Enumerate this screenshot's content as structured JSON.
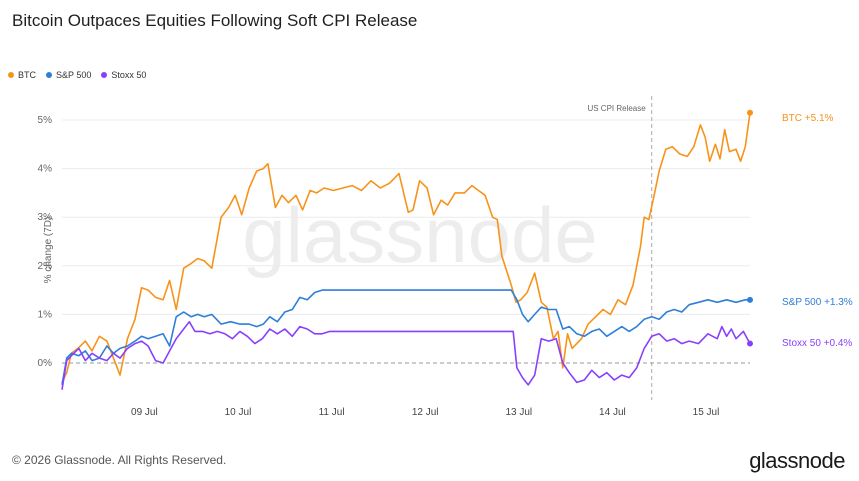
{
  "title": "Bitcoin Outpaces Equities Following Soft CPI Release",
  "footer": "© 2026 Glassnode. All Rights Reserved.",
  "brand": "glassnode",
  "watermark": "glassnode",
  "chart_data": {
    "type": "line",
    "ylabel": "% change (7D)",
    "yticks": [
      "0%",
      "1%",
      "2%",
      "3%",
      "4%",
      "5%"
    ],
    "ylim": [
      -0.8,
      5.5
    ],
    "xlim": [
      0,
      7.05
    ],
    "xticks": [
      {
        "x": 1.0,
        "label": "09 Jul"
      },
      {
        "x": 2.0,
        "label": "10 Jul"
      },
      {
        "x": 3.0,
        "label": "11 Jul"
      },
      {
        "x": 4.0,
        "label": "12 Jul"
      },
      {
        "x": 5.0,
        "label": "13 Jul"
      },
      {
        "x": 6.0,
        "label": "14 Jul"
      },
      {
        "x": 7.0,
        "label": "15 Jul"
      }
    ],
    "grid": "horizontal",
    "legend_position": "top-left",
    "zero_line": "dashed",
    "annotation": {
      "x": 6.3,
      "label": "US CPI Release"
    },
    "series": [
      {
        "name": "BTC",
        "color": "#f7931a",
        "end_label": "BTC +5.1%",
        "points": [
          [
            0.0,
            -0.4
          ],
          [
            0.05,
            -0.2
          ],
          [
            0.1,
            0.2
          ],
          [
            0.17,
            0.3
          ],
          [
            0.25,
            0.45
          ],
          [
            0.32,
            0.25
          ],
          [
            0.4,
            0.55
          ],
          [
            0.48,
            0.45
          ],
          [
            0.55,
            0.1
          ],
          [
            0.62,
            -0.25
          ],
          [
            0.7,
            0.5
          ],
          [
            0.78,
            0.9
          ],
          [
            0.85,
            1.55
          ],
          [
            0.92,
            1.5
          ],
          [
            1.0,
            1.35
          ],
          [
            1.08,
            1.3
          ],
          [
            1.15,
            1.7
          ],
          [
            1.22,
            1.1
          ],
          [
            1.3,
            1.95
          ],
          [
            1.38,
            2.05
          ],
          [
            1.45,
            2.15
          ],
          [
            1.52,
            2.1
          ],
          [
            1.6,
            1.95
          ],
          [
            1.7,
            3.0
          ],
          [
            1.78,
            3.2
          ],
          [
            1.85,
            3.45
          ],
          [
            1.92,
            3.05
          ],
          [
            2.0,
            3.6
          ],
          [
            2.08,
            3.95
          ],
          [
            2.15,
            4.0
          ],
          [
            2.2,
            4.1
          ],
          [
            2.28,
            3.2
          ],
          [
            2.35,
            3.45
          ],
          [
            2.42,
            3.3
          ],
          [
            2.5,
            3.45
          ],
          [
            2.57,
            3.15
          ],
          [
            2.65,
            3.55
          ],
          [
            2.72,
            3.5
          ],
          [
            2.8,
            3.6
          ],
          [
            2.9,
            3.55
          ],
          [
            3.0,
            3.6
          ],
          [
            3.1,
            3.65
          ],
          [
            3.2,
            3.55
          ],
          [
            3.3,
            3.75
          ],
          [
            3.4,
            3.6
          ],
          [
            3.5,
            3.7
          ],
          [
            3.6,
            3.9
          ],
          [
            3.7,
            3.1
          ],
          [
            3.75,
            3.15
          ],
          [
            3.82,
            3.75
          ],
          [
            3.9,
            3.6
          ],
          [
            3.97,
            3.05
          ],
          [
            4.05,
            3.35
          ],
          [
            4.12,
            3.25
          ],
          [
            4.2,
            3.5
          ],
          [
            4.3,
            3.5
          ],
          [
            4.38,
            3.65
          ],
          [
            4.45,
            3.55
          ],
          [
            4.52,
            3.45
          ],
          [
            4.6,
            3.0
          ],
          [
            4.65,
            2.95
          ],
          [
            4.7,
            2.2
          ],
          [
            4.75,
            1.9
          ],
          [
            4.8,
            1.6
          ],
          [
            4.85,
            1.25
          ],
          [
            4.9,
            1.3
          ],
          [
            4.97,
            1.45
          ],
          [
            5.05,
            1.85
          ],
          [
            5.12,
            1.25
          ],
          [
            5.18,
            1.15
          ],
          [
            5.25,
            0.5
          ],
          [
            5.3,
            0.65
          ],
          [
            5.35,
            -0.1
          ],
          [
            5.4,
            0.6
          ],
          [
            5.45,
            0.3
          ],
          [
            5.55,
            0.5
          ],
          [
            5.62,
            0.8
          ],
          [
            5.7,
            0.95
          ],
          [
            5.78,
            1.1
          ],
          [
            5.86,
            1.0
          ],
          [
            5.94,
            1.3
          ],
          [
            6.02,
            1.2
          ],
          [
            6.1,
            1.6
          ],
          [
            6.18,
            2.4
          ],
          [
            6.22,
            3.0
          ],
          [
            6.27,
            2.95
          ],
          [
            6.32,
            3.4
          ],
          [
            6.38,
            3.95
          ],
          [
            6.45,
            4.4
          ],
          [
            6.52,
            4.45
          ],
          [
            6.6,
            4.3
          ],
          [
            6.68,
            4.25
          ],
          [
            6.75,
            4.45
          ],
          [
            6.82,
            4.9
          ],
          [
            6.87,
            4.65
          ],
          [
            6.92,
            4.15
          ],
          [
            6.98,
            4.5
          ],
          [
            7.03,
            4.2
          ],
          [
            7.08,
            4.8
          ],
          [
            7.13,
            4.35
          ],
          [
            7.2,
            4.4
          ],
          [
            7.25,
            4.15
          ],
          [
            7.3,
            4.45
          ],
          [
            7.35,
            5.15
          ]
        ]
      },
      {
        "name": "S&P 500",
        "color": "#2f7ed8",
        "end_label": "S&P 500 +1.3%",
        "points": [
          [
            0.0,
            -0.45
          ],
          [
            0.05,
            0.1
          ],
          [
            0.1,
            0.2
          ],
          [
            0.18,
            0.15
          ],
          [
            0.25,
            0.25
          ],
          [
            0.32,
            0.05
          ],
          [
            0.4,
            0.1
          ],
          [
            0.48,
            0.35
          ],
          [
            0.55,
            0.2
          ],
          [
            0.62,
            0.3
          ],
          [
            0.7,
            0.35
          ],
          [
            0.78,
            0.45
          ],
          [
            0.85,
            0.55
          ],
          [
            0.92,
            0.5
          ],
          [
            1.0,
            0.55
          ],
          [
            1.08,
            0.6
          ],
          [
            1.15,
            0.35
          ],
          [
            1.22,
            0.95
          ],
          [
            1.3,
            1.05
          ],
          [
            1.38,
            0.95
          ],
          [
            1.45,
            1.0
          ],
          [
            1.52,
            0.95
          ],
          [
            1.6,
            1.0
          ],
          [
            1.7,
            0.8
          ],
          [
            1.8,
            0.85
          ],
          [
            1.9,
            0.8
          ],
          [
            2.0,
            0.8
          ],
          [
            2.08,
            0.75
          ],
          [
            2.15,
            0.8
          ],
          [
            2.22,
            0.95
          ],
          [
            2.3,
            0.85
          ],
          [
            2.38,
            1.05
          ],
          [
            2.46,
            1.1
          ],
          [
            2.54,
            1.35
          ],
          [
            2.62,
            1.3
          ],
          [
            2.7,
            1.45
          ],
          [
            2.78,
            1.5
          ],
          [
            3.5,
            1.5
          ],
          [
            4.2,
            1.5
          ],
          [
            4.8,
            1.5
          ],
          [
            4.86,
            1.3
          ],
          [
            4.92,
            1.0
          ],
          [
            4.98,
            0.85
          ],
          [
            5.05,
            1.0
          ],
          [
            5.12,
            1.15
          ],
          [
            5.2,
            1.1
          ],
          [
            5.28,
            1.1
          ],
          [
            5.35,
            0.7
          ],
          [
            5.42,
            0.75
          ],
          [
            5.5,
            0.6
          ],
          [
            5.58,
            0.55
          ],
          [
            5.66,
            0.65
          ],
          [
            5.74,
            0.7
          ],
          [
            5.82,
            0.55
          ],
          [
            5.9,
            0.65
          ],
          [
            5.98,
            0.75
          ],
          [
            6.06,
            0.65
          ],
          [
            6.14,
            0.75
          ],
          [
            6.22,
            0.9
          ],
          [
            6.3,
            0.95
          ],
          [
            6.38,
            0.9
          ],
          [
            6.46,
            1.05
          ],
          [
            6.54,
            1.1
          ],
          [
            6.62,
            1.05
          ],
          [
            6.7,
            1.2
          ],
          [
            6.8,
            1.25
          ],
          [
            6.9,
            1.3
          ],
          [
            7.0,
            1.25
          ],
          [
            7.1,
            1.3
          ],
          [
            7.2,
            1.25
          ],
          [
            7.3,
            1.3
          ],
          [
            7.35,
            1.3
          ]
        ]
      },
      {
        "name": "Stoxx 50",
        "color": "#8a3ffc",
        "end_label": "Stoxx 50 +0.4%",
        "points": [
          [
            0.0,
            -0.55
          ],
          [
            0.05,
            0.05
          ],
          [
            0.1,
            0.15
          ],
          [
            0.18,
            0.3
          ],
          [
            0.25,
            0.05
          ],
          [
            0.32,
            0.2
          ],
          [
            0.4,
            0.1
          ],
          [
            0.48,
            0.05
          ],
          [
            0.55,
            0.2
          ],
          [
            0.62,
            0.1
          ],
          [
            0.7,
            0.3
          ],
          [
            0.78,
            0.4
          ],
          [
            0.85,
            0.45
          ],
          [
            0.92,
            0.35
          ],
          [
            1.0,
            0.05
          ],
          [
            1.08,
            0.0
          ],
          [
            1.15,
            0.25
          ],
          [
            1.22,
            0.5
          ],
          [
            1.3,
            0.7
          ],
          [
            1.36,
            0.85
          ],
          [
            1.42,
            0.65
          ],
          [
            1.5,
            0.65
          ],
          [
            1.58,
            0.6
          ],
          [
            1.66,
            0.65
          ],
          [
            1.74,
            0.6
          ],
          [
            1.82,
            0.5
          ],
          [
            1.9,
            0.65
          ],
          [
            1.98,
            0.55
          ],
          [
            2.06,
            0.4
          ],
          [
            2.14,
            0.5
          ],
          [
            2.22,
            0.7
          ],
          [
            2.3,
            0.6
          ],
          [
            2.38,
            0.7
          ],
          [
            2.46,
            0.55
          ],
          [
            2.54,
            0.75
          ],
          [
            2.62,
            0.7
          ],
          [
            2.7,
            0.6
          ],
          [
            2.78,
            0.6
          ],
          [
            2.86,
            0.65
          ],
          [
            3.5,
            0.65
          ],
          [
            4.2,
            0.65
          ],
          [
            4.82,
            0.65
          ],
          [
            4.86,
            -0.1
          ],
          [
            4.92,
            -0.3
          ],
          [
            4.98,
            -0.45
          ],
          [
            5.05,
            -0.25
          ],
          [
            5.12,
            0.5
          ],
          [
            5.2,
            0.45
          ],
          [
            5.28,
            0.5
          ],
          [
            5.35,
            0.0
          ],
          [
            5.42,
            -0.2
          ],
          [
            5.5,
            -0.4
          ],
          [
            5.58,
            -0.35
          ],
          [
            5.66,
            -0.15
          ],
          [
            5.74,
            -0.3
          ],
          [
            5.82,
            -0.2
          ],
          [
            5.9,
            -0.35
          ],
          [
            5.98,
            -0.25
          ],
          [
            6.06,
            -0.3
          ],
          [
            6.14,
            -0.1
          ],
          [
            6.22,
            0.3
          ],
          [
            6.3,
            0.55
          ],
          [
            6.38,
            0.6
          ],
          [
            6.46,
            0.45
          ],
          [
            6.54,
            0.5
          ],
          [
            6.62,
            0.4
          ],
          [
            6.7,
            0.45
          ],
          [
            6.8,
            0.4
          ],
          [
            6.9,
            0.6
          ],
          [
            7.0,
            0.5
          ],
          [
            7.05,
            0.75
          ],
          [
            7.1,
            0.55
          ],
          [
            7.15,
            0.7
          ],
          [
            7.2,
            0.5
          ],
          [
            7.28,
            0.65
          ],
          [
            7.35,
            0.4
          ]
        ]
      }
    ]
  }
}
